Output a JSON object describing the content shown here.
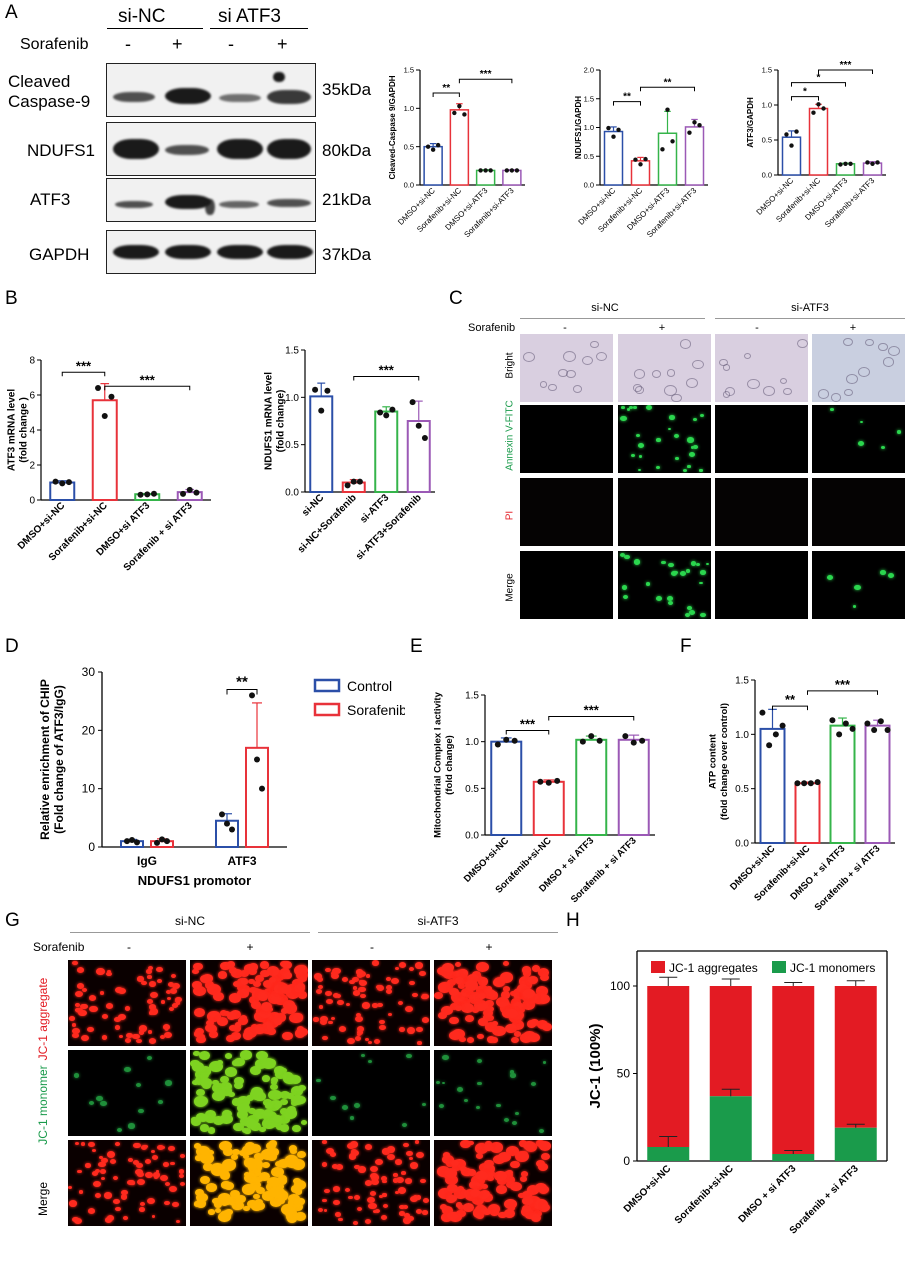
{
  "panels": {
    "A": "A",
    "B": "B",
    "C": "C",
    "D": "D",
    "E": "E",
    "F": "F",
    "G": "G",
    "H": "H"
  },
  "panelA": {
    "group_labels": [
      "si-NC",
      "si ATF3"
    ],
    "treatment_label": "Sorafenib",
    "signs": [
      "-",
      "+",
      "-",
      "+"
    ],
    "proteins": [
      {
        "name": "Cleaved Caspase-9",
        "kda": "35kDa"
      },
      {
        "name": "NDUFS1",
        "kda": "80kDa"
      },
      {
        "name": "ATF3",
        "kda": "21kDa"
      },
      {
        "name": "GAPDH",
        "kda": "37kDa"
      }
    ]
  },
  "panelC": {
    "groups": [
      "si-NC",
      "si-ATF3"
    ],
    "treatment": "Sorafenib",
    "signs": [
      "-",
      "+",
      "-",
      "+"
    ],
    "rows": [
      "Bright",
      "Annexin V-FITC",
      "PI",
      "Merge"
    ]
  },
  "panelG": {
    "groups": [
      "si-NC",
      "si-ATF3"
    ],
    "treatment": "Sorafenib",
    "signs": [
      "-",
      "+",
      "-",
      "+"
    ],
    "rows": [
      "JC-1 aggregate",
      "JC-1 monomer",
      "Merge"
    ]
  },
  "colors": {
    "blue": "#2b4fa8",
    "red": "#e8323a",
    "green": "#35b44a",
    "purple": "#9b59b6",
    "jc_red": "#e31b23",
    "jc_green": "#1a9b4b"
  },
  "chart_data": [
    {
      "id": "A1",
      "type": "bar",
      "categories": [
        "DMSO+si-NC",
        "Sorafenib+si-NC",
        "DMSO+si-ATF3",
        "Sorafenib+si-ATF3"
      ],
      "values": [
        0.5,
        0.98,
        0.19,
        0.19
      ],
      "errors": [
        0.04,
        0.08,
        0.01,
        0.01
      ],
      "points": [
        [
          0.5,
          0.46,
          0.52
        ],
        [
          0.94,
          1.03,
          0.92
        ],
        [
          0.19,
          0.19,
          0.19
        ],
        [
          0.19,
          0.19,
          0.19
        ]
      ],
      "ylabel": "Cleaved-Caspase 9/GAPDH",
      "ylim": [
        0,
        1.5
      ],
      "yticks": [
        "0.0",
        "0.5",
        "1.0",
        "1.5"
      ],
      "sig": [
        {
          "a": 0,
          "b": 1,
          "label": "**"
        },
        {
          "a": 1,
          "b": 3,
          "label": "***"
        }
      ]
    },
    {
      "id": "A2",
      "type": "bar",
      "categories": [
        "DMSO+si-NC",
        "Sorafenib+si-NC",
        "DMSO+si-ATF3",
        "Sorafenib+si-ATF3"
      ],
      "values": [
        0.93,
        0.42,
        0.9,
        1.01
      ],
      "errors": [
        0.08,
        0.06,
        0.38,
        0.13
      ],
      "points": [
        [
          0.99,
          0.84,
          0.96
        ],
        [
          0.44,
          0.36,
          0.45
        ],
        [
          0.62,
          1.31,
          0.76
        ],
        [
          0.91,
          1.09,
          1.04
        ]
      ],
      "ylabel": "NDUFS1/GAPDH",
      "ylim": [
        0,
        2.0
      ],
      "yticks": [
        "0.0",
        "0.5",
        "1.0",
        "1.5",
        "2.0"
      ],
      "sig": [
        {
          "a": 0,
          "b": 1,
          "label": "**"
        },
        {
          "a": 1,
          "b": 3,
          "label": "**"
        }
      ]
    },
    {
      "id": "A3",
      "type": "bar",
      "categories": [
        "DMSO+si-NC",
        "Sorafenib+si-NC",
        "DMSO+si-ATF3",
        "Sorafenib+si-ATF3"
      ],
      "values": [
        0.54,
        0.95,
        0.16,
        0.17
      ],
      "errors": [
        0.09,
        0.06,
        0.01,
        0.02
      ],
      "points": [
        [
          0.58,
          0.42,
          0.62
        ],
        [
          0.89,
          1.01,
          0.95
        ],
        [
          0.15,
          0.16,
          0.16
        ],
        [
          0.18,
          0.16,
          0.18
        ]
      ],
      "ylabel": "ATF3/GAPDH",
      "ylim": [
        0,
        1.5
      ],
      "yticks": [
        "0.0",
        "0.5",
        "1.0",
        "1.5"
      ],
      "sig": [
        {
          "a": 0,
          "b": 1,
          "label": "*"
        },
        {
          "a": 0,
          "b": 2,
          "label": "*"
        },
        {
          "a": 1,
          "b": 3,
          "label": "***"
        }
      ]
    },
    {
      "id": "B1",
      "type": "bar",
      "categories": [
        "DMSO+si-NC",
        "Sorafenib+si-NC",
        "DMSO+si ATF3",
        "Sorafenib + si ATF3"
      ],
      "values": [
        1.0,
        5.7,
        0.33,
        0.45
      ],
      "errors": [
        0.1,
        0.95,
        0.04,
        0.15
      ],
      "points": [
        [
          1.05,
          0.95,
          1.02
        ],
        [
          6.4,
          4.8,
          5.9
        ],
        [
          0.3,
          0.32,
          0.36
        ],
        [
          0.35,
          0.58,
          0.42
        ]
      ],
      "ylabel": "ATF3 mRNA level\n(fold change )",
      "ylim": [
        0,
        8
      ],
      "yticks": [
        "0",
        "2",
        "4",
        "6",
        "8"
      ],
      "sig": [
        {
          "a": 0,
          "b": 1,
          "label": "***"
        },
        {
          "a": 1,
          "b": 3,
          "label": "***"
        }
      ]
    },
    {
      "id": "B2",
      "type": "bar",
      "categories": [
        "si-NC",
        "si-NC+Sorafenib",
        "si-ATF3",
        "si-ATF3+Sorafenib"
      ],
      "values": [
        1.01,
        0.1,
        0.85,
        0.75
      ],
      "errors": [
        0.14,
        0.03,
        0.05,
        0.21
      ],
      "points": [
        [
          1.08,
          0.86,
          1.07
        ],
        [
          0.07,
          0.11,
          0.11
        ],
        [
          0.84,
          0.81,
          0.87
        ],
        [
          0.95,
          0.7,
          0.57
        ]
      ],
      "ylabel": "NDUFS1 mRNA level\n(fold change)",
      "ylim": [
        0,
        1.5
      ],
      "yticks": [
        "0.0",
        "0.5",
        "1.0",
        "1.5"
      ],
      "sig": [
        {
          "a": 1,
          "b": 3,
          "label": "***"
        }
      ]
    },
    {
      "id": "D",
      "type": "bar",
      "categories": [
        "IgG",
        "ATF3"
      ],
      "series": [
        {
          "name": "Control",
          "values": [
            1.0,
            4.5
          ],
          "errors": [
            0.3,
            1.2
          ],
          "points": [
            [
              1.0,
              1.2,
              0.8
            ],
            [
              5.6,
              4.0,
              3.0
            ]
          ]
        },
        {
          "name": "Sorafenib",
          "values": [
            1.0,
            17.0
          ],
          "errors": [
            0.4,
            7.7
          ],
          "points": [
            [
              0.7,
              1.3,
              1.0
            ],
            [
              26.0,
              15.0,
              10.0
            ]
          ]
        }
      ],
      "xlabel": "NDUFS1 promotor",
      "ylabel": "Relative enrichment of CHIP\n(Fold change of ATF3/IgG)",
      "ylim": [
        0,
        30
      ],
      "yticks": [
        "0",
        "10",
        "20",
        "30"
      ],
      "sig": [
        {
          "label": "**"
        }
      ]
    },
    {
      "id": "E",
      "type": "bar",
      "categories": [
        "DMSO+si-NC",
        "Sorafenib+si-NC",
        "DMSO + si ATF3",
        "Sorafenib + si ATF3"
      ],
      "values": [
        1.0,
        0.57,
        1.02,
        1.02
      ],
      "errors": [
        0.04,
        0.02,
        0.04,
        0.05
      ],
      "points": [
        [
          0.97,
          1.02,
          1.01
        ],
        [
          0.57,
          0.56,
          0.58
        ],
        [
          1.0,
          1.06,
          1.01
        ],
        [
          1.06,
          0.99,
          1.01
        ]
      ],
      "ylabel": "Mitochondrial Complex I activity\n(fold change)",
      "ylim": [
        0,
        1.5
      ],
      "yticks": [
        "0.0",
        "0.5",
        "1.0",
        "1.5"
      ],
      "sig": [
        {
          "a": 0,
          "b": 1,
          "label": "***"
        },
        {
          "a": 1,
          "b": 3,
          "label": "***"
        }
      ]
    },
    {
      "id": "F",
      "type": "bar",
      "categories": [
        "DMSO+si-NC",
        "Sorafenib+si-NC",
        "DMSO + si ATF3",
        "Sorafenib + si ATF3"
      ],
      "values": [
        1.05,
        0.55,
        1.08,
        1.08
      ],
      "errors": [
        0.18,
        0.01,
        0.07,
        0.05
      ],
      "points": [
        [
          1.2,
          0.9,
          1.0,
          1.08
        ],
        [
          0.55,
          0.55,
          0.55,
          0.56
        ],
        [
          1.13,
          1.0,
          1.1,
          1.05
        ],
        [
          1.1,
          1.04,
          1.12,
          1.04
        ]
      ],
      "ylabel": "ATP content\n(fold change over control)",
      "ylim": [
        0,
        1.5
      ],
      "yticks": [
        "0.0",
        "0.5",
        "1.0",
        "1.5"
      ],
      "sig": [
        {
          "a": 0,
          "b": 1,
          "label": "**"
        },
        {
          "a": 1,
          "b": 3,
          "label": "***"
        }
      ]
    },
    {
      "id": "H",
      "type": "bar",
      "stacked": true,
      "categories": [
        "DMSO+si-NC",
        "Sorafenib+si-NC",
        "DMSO + si ATF3",
        "Sorafenib + si ATF3"
      ],
      "series": [
        {
          "name": "JC-1 aggregates",
          "values": [
            92,
            63,
            96,
            81
          ]
        },
        {
          "name": "JC-1 monomers",
          "values": [
            8,
            37,
            4,
            19
          ]
        }
      ],
      "errors_total": [
        5,
        4,
        2,
        3
      ],
      "errors_monomer": [
        6,
        4,
        2,
        2
      ],
      "ylabel": "JC-1 (100%)",
      "ylim": [
        0,
        120
      ],
      "yticks": [
        "0",
        "50",
        "100"
      ]
    }
  ]
}
